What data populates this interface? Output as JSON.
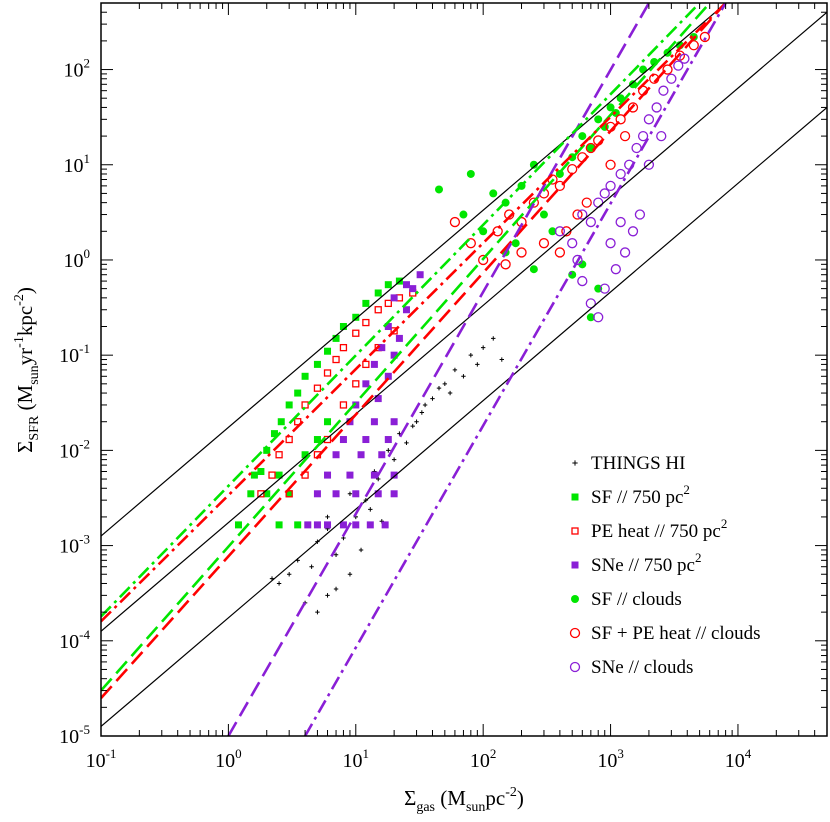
{
  "chart_data": {
    "type": "scatter",
    "x_scale": "log",
    "y_scale": "log",
    "xlim": [
      0.1,
      50000
    ],
    "ylim": [
      1e-05,
      500
    ],
    "x_ticks": [
      {
        "base": "10",
        "exp": "-1"
      },
      {
        "base": "10",
        "exp": "0"
      },
      {
        "base": "10",
        "exp": "1"
      },
      {
        "base": "10",
        "exp": "2"
      },
      {
        "base": "10",
        "exp": "3"
      },
      {
        "base": "10",
        "exp": "4"
      }
    ],
    "y_ticks": [
      {
        "base": "10",
        "exp": "-5"
      },
      {
        "base": "10",
        "exp": "-4"
      },
      {
        "base": "10",
        "exp": "-3"
      },
      {
        "base": "10",
        "exp": "-2"
      },
      {
        "base": "10",
        "exp": "-1"
      },
      {
        "base": "10",
        "exp": "0"
      },
      {
        "base": "10",
        "exp": "1"
      },
      {
        "base": "10",
        "exp": "2"
      }
    ],
    "xlabel": {
      "sym": "Σ",
      "sub": "gas",
      "unit_open": " (M",
      "unit_sub": "sun",
      "unit_rest": "pc",
      "unit_exp": "-2",
      "unit_close": ")"
    },
    "ylabel": {
      "sym": "Σ",
      "sub": "SFR",
      "unit_open": " (M",
      "unit_sub": "sun",
      "unit_mid": "yr",
      "unit_exp1": "-1",
      "unit_rest": "kpc",
      "unit_exp2": "-2",
      "unit_close": ")"
    },
    "colors": {
      "things": "#000000",
      "sf": "#00e600",
      "pe": "#ff0000",
      "sne": "#8a1fd6"
    },
    "legend": [
      {
        "label": "THINGS HI",
        "sup": "",
        "marker": "plus",
        "color": "#000000"
      },
      {
        "label": "SF // 750 pc",
        "sup": "2",
        "marker": "square-filled",
        "color": "#00e600"
      },
      {
        "label": "PE heat // 750 pc",
        "sup": "2",
        "marker": "square-open",
        "color": "#ff0000"
      },
      {
        "label": "SNe // 750 pc",
        "sup": "2",
        "marker": "square-filled",
        "color": "#8a1fd6"
      },
      {
        "label": "SF // clouds",
        "sup": "",
        "marker": "circle-filled",
        "color": "#00e600"
      },
      {
        "label": "SF + PE heat // clouds",
        "sup": "",
        "marker": "circle-open",
        "color": "#ff0000"
      },
      {
        "label": "SNe // clouds",
        "sup": "",
        "marker": "circle-open",
        "color": "#8a1fd6"
      }
    ],
    "reference_lines": [
      {
        "name": "efficiency-100pct",
        "style": "solid",
        "color": "#000000",
        "points": [
          [
            0.1,
            0.00126
          ],
          [
            50000,
            4000
          ]
        ]
      },
      {
        "name": "efficiency-10pct",
        "style": "solid",
        "color": "#000000",
        "points": [
          [
            0.1,
            0.000126
          ],
          [
            50000,
            400
          ]
        ]
      },
      {
        "name": "efficiency-1pct",
        "style": "solid",
        "color": "#000000",
        "points": [
          [
            0.1,
            1.26e-05
          ],
          [
            50000,
            40
          ]
        ]
      }
    ],
    "fit_lines": [
      {
        "name": "sf-750-fit",
        "style": "dashed",
        "color": "#00e600",
        "points": [
          [
            0.1,
            3e-05
          ],
          [
            6000,
            500
          ]
        ]
      },
      {
        "name": "pe-750-fit",
        "style": "dashed",
        "color": "#ff0000",
        "points": [
          [
            0.1,
            2.5e-05
          ],
          [
            8000,
            500
          ]
        ]
      },
      {
        "name": "sne-750-fit",
        "style": "dashed",
        "color": "#8a1fd6",
        "points": [
          [
            1,
            1e-05
          ],
          [
            2000,
            500
          ]
        ]
      },
      {
        "name": "sf-clouds-fit",
        "style": "dashdot",
        "color": "#00e600",
        "points": [
          [
            0.1,
            0.00018
          ],
          [
            5000,
            500
          ]
        ]
      },
      {
        "name": "pe-clouds-fit",
        "style": "dashdot",
        "color": "#ff0000",
        "points": [
          [
            0.1,
            0.00016
          ],
          [
            8000,
            500
          ]
        ]
      },
      {
        "name": "sne-clouds-fit",
        "style": "dashdot",
        "color": "#8a1fd6",
        "points": [
          [
            4,
            1e-05
          ],
          [
            8000,
            500
          ]
        ]
      }
    ],
    "series": [
      {
        "name": "THINGS HI",
        "marker": "plus",
        "color": "#000000",
        "points": [
          [
            4,
            0.00025
          ],
          [
            5,
            0.0002
          ],
          [
            6,
            0.0003
          ],
          [
            4.5,
            0.0006
          ],
          [
            3,
            0.0005
          ],
          [
            2.5,
            0.0004
          ],
          [
            7,
            0.0008
          ],
          [
            8,
            0.0012
          ],
          [
            6,
            0.0015
          ],
          [
            10,
            0.002
          ],
          [
            12,
            0.003
          ],
          [
            15,
            0.005
          ],
          [
            20,
            0.008
          ],
          [
            25,
            0.012
          ],
          [
            30,
            0.02
          ],
          [
            40,
            0.035
          ],
          [
            50,
            0.05
          ],
          [
            60,
            0.07
          ],
          [
            80,
            0.1
          ],
          [
            100,
            0.12
          ],
          [
            6,
            0.002
          ],
          [
            9,
            0.0035
          ],
          [
            14,
            0.006
          ],
          [
            18,
            0.01
          ],
          [
            22,
            0.015
          ],
          [
            35,
            0.03
          ],
          [
            45,
            0.045
          ],
          [
            70,
            0.06
          ],
          [
            5,
            0.0011
          ],
          [
            3.5,
            0.0007
          ],
          [
            2.2,
            0.00045
          ],
          [
            7,
            0.00035
          ],
          [
            9,
            0.0005
          ],
          [
            11,
            0.0009
          ],
          [
            16,
            0.0018
          ],
          [
            13,
            0.0024
          ],
          [
            28,
            0.018
          ],
          [
            33,
            0.025
          ],
          [
            55,
            0.04
          ],
          [
            90,
            0.08
          ],
          [
            140,
            0.09
          ],
          [
            120,
            0.15
          ]
        ]
      },
      {
        "name": "SF // 750 pc2",
        "marker": "square-filled",
        "color": "#00e600",
        "points": [
          [
            1.2,
            0.00165
          ],
          [
            1.5,
            0.0035
          ],
          [
            1.8,
            0.006
          ],
          [
            2,
            0.01
          ],
          [
            2.3,
            0.015
          ],
          [
            2.6,
            0.02
          ],
          [
            3,
            0.03
          ],
          [
            3.5,
            0.04
          ],
          [
            4,
            0.06
          ],
          [
            5,
            0.08
          ],
          [
            6,
            0.11
          ],
          [
            7,
            0.15
          ],
          [
            8,
            0.2
          ],
          [
            10,
            0.25
          ],
          [
            12,
            0.35
          ],
          [
            15,
            0.45
          ],
          [
            18,
            0.55
          ],
          [
            22,
            0.6
          ],
          [
            2.5,
            0.00165
          ],
          [
            3.5,
            0.00165
          ],
          [
            2,
            0.0035
          ],
          [
            3,
            0.0035
          ],
          [
            2.5,
            0.0055
          ],
          [
            4,
            0.009
          ],
          [
            5,
            0.013
          ],
          [
            6,
            0.02
          ],
          [
            1.6,
            0.0055
          ]
        ]
      },
      {
        "name": "PE heat // 750 pc2",
        "marker": "square-open",
        "color": "#ff0000",
        "points": [
          [
            1.8,
            0.0035
          ],
          [
            2.2,
            0.0055
          ],
          [
            2.5,
            0.009
          ],
          [
            3,
            0.013
          ],
          [
            3.5,
            0.02
          ],
          [
            4,
            0.03
          ],
          [
            5,
            0.045
          ],
          [
            6,
            0.065
          ],
          [
            7,
            0.09
          ],
          [
            8,
            0.12
          ],
          [
            10,
            0.17
          ],
          [
            12,
            0.22
          ],
          [
            15,
            0.3
          ],
          [
            18,
            0.35
          ],
          [
            22,
            0.4
          ],
          [
            28,
            0.45
          ],
          [
            3,
            0.0035
          ],
          [
            4,
            0.0055
          ],
          [
            5,
            0.009
          ],
          [
            6,
            0.013
          ],
          [
            8,
            0.03
          ],
          [
            10,
            0.05
          ],
          [
            12,
            0.08
          ],
          [
            15,
            0.12
          ],
          [
            20,
            0.18
          ]
        ]
      },
      {
        "name": "SNe // 750 pc2",
        "marker": "square-filled",
        "color": "#8a1fd6",
        "points": [
          [
            4.2,
            0.00165
          ],
          [
            5,
            0.00165
          ],
          [
            6,
            0.00165
          ],
          [
            8,
            0.00165
          ],
          [
            10,
            0.00165
          ],
          [
            13,
            0.00165
          ],
          [
            17,
            0.00165
          ],
          [
            5,
            0.0035
          ],
          [
            7,
            0.0035
          ],
          [
            10,
            0.0035
          ],
          [
            15,
            0.0035
          ],
          [
            20,
            0.0035
          ],
          [
            6,
            0.0055
          ],
          [
            9,
            0.0055
          ],
          [
            14,
            0.0055
          ],
          [
            20,
            0.0055
          ],
          [
            7,
            0.009
          ],
          [
            11,
            0.009
          ],
          [
            16,
            0.009
          ],
          [
            8,
            0.013
          ],
          [
            12,
            0.013
          ],
          [
            18,
            0.013
          ],
          [
            9,
            0.02
          ],
          [
            14,
            0.02
          ],
          [
            20,
            0.02
          ],
          [
            10,
            0.03
          ],
          [
            15,
            0.035
          ],
          [
            12,
            0.05
          ],
          [
            18,
            0.06
          ],
          [
            14,
            0.08
          ],
          [
            20,
            0.1
          ],
          [
            16,
            0.12
          ],
          [
            22,
            0.15
          ],
          [
            18,
            0.2
          ],
          [
            25,
            0.3
          ],
          [
            20,
            0.4
          ],
          [
            28,
            0.5
          ],
          [
            32,
            0.7
          ],
          [
            25,
            0.55
          ]
        ]
      },
      {
        "name": "SF // clouds",
        "marker": "circle-filled",
        "color": "#00e600",
        "points": [
          [
            45,
            5.5
          ],
          [
            70,
            3
          ],
          [
            80,
            8
          ],
          [
            100,
            2
          ],
          [
            120,
            5
          ],
          [
            150,
            4
          ],
          [
            200,
            6
          ],
          [
            250,
            10
          ],
          [
            300,
            3
          ],
          [
            400,
            8
          ],
          [
            500,
            12
          ],
          [
            600,
            20
          ],
          [
            700,
            15
          ],
          [
            800,
            30
          ],
          [
            1000,
            40
          ],
          [
            1200,
            50
          ],
          [
            1500,
            70
          ],
          [
            1800,
            100
          ],
          [
            2200,
            120
          ],
          [
            2800,
            150
          ],
          [
            3500,
            180
          ],
          [
            4500,
            220
          ],
          [
            180,
            1.5
          ],
          [
            350,
            2
          ],
          [
            600,
            0.9
          ],
          [
            800,
            0.5
          ],
          [
            700,
            0.25
          ],
          [
            500,
            0.7
          ],
          [
            250,
            0.8
          ],
          [
            150,
            1.2
          ],
          [
            900,
            25
          ],
          [
            1100,
            35
          ]
        ]
      },
      {
        "name": "SF + PE heat // clouds",
        "marker": "circle-open",
        "color": "#ff0000",
        "points": [
          [
            60,
            2.5
          ],
          [
            80,
            1.5
          ],
          [
            100,
            1
          ],
          [
            130,
            2
          ],
          [
            160,
            3
          ],
          [
            200,
            2.5
          ],
          [
            250,
            4
          ],
          [
            300,
            5
          ],
          [
            350,
            7
          ],
          [
            400,
            6
          ],
          [
            500,
            9
          ],
          [
            600,
            12
          ],
          [
            700,
            15
          ],
          [
            800,
            18
          ],
          [
            1000,
            25
          ],
          [
            1200,
            30
          ],
          [
            1500,
            40
          ],
          [
            1800,
            60
          ],
          [
            2200,
            80
          ],
          [
            2800,
            100
          ],
          [
            3500,
            140
          ],
          [
            4500,
            180
          ],
          [
            5500,
            220
          ],
          [
            300,
            1.5
          ],
          [
            450,
            2
          ],
          [
            550,
            3
          ],
          [
            650,
            4
          ],
          [
            400,
            1.2
          ],
          [
            200,
            1.2
          ],
          [
            150,
            0.9
          ],
          [
            1000,
            10
          ],
          [
            1300,
            20
          ]
        ]
      },
      {
        "name": "SNe // clouds",
        "marker": "circle-open",
        "color": "#8a1fd6",
        "points": [
          [
            400,
            2
          ],
          [
            500,
            1.5
          ],
          [
            550,
            1
          ],
          [
            600,
            3
          ],
          [
            700,
            2.5
          ],
          [
            800,
            4
          ],
          [
            900,
            5
          ],
          [
            1000,
            6
          ],
          [
            1200,
            8
          ],
          [
            1400,
            10
          ],
          [
            1600,
            15
          ],
          [
            1800,
            20
          ],
          [
            2000,
            30
          ],
          [
            2300,
            40
          ],
          [
            2600,
            60
          ],
          [
            3000,
            80
          ],
          [
            3400,
            110
          ],
          [
            3800,
            130
          ],
          [
            600,
            0.6
          ],
          [
            700,
            0.35
          ],
          [
            800,
            0.25
          ],
          [
            900,
            0.5
          ],
          [
            1100,
            0.8
          ],
          [
            1300,
            1.2
          ],
          [
            1500,
            2
          ],
          [
            1700,
            3
          ],
          [
            1000,
            1.5
          ],
          [
            1200,
            2.5
          ],
          [
            2000,
            10
          ],
          [
            2500,
            20
          ]
        ]
      }
    ]
  }
}
